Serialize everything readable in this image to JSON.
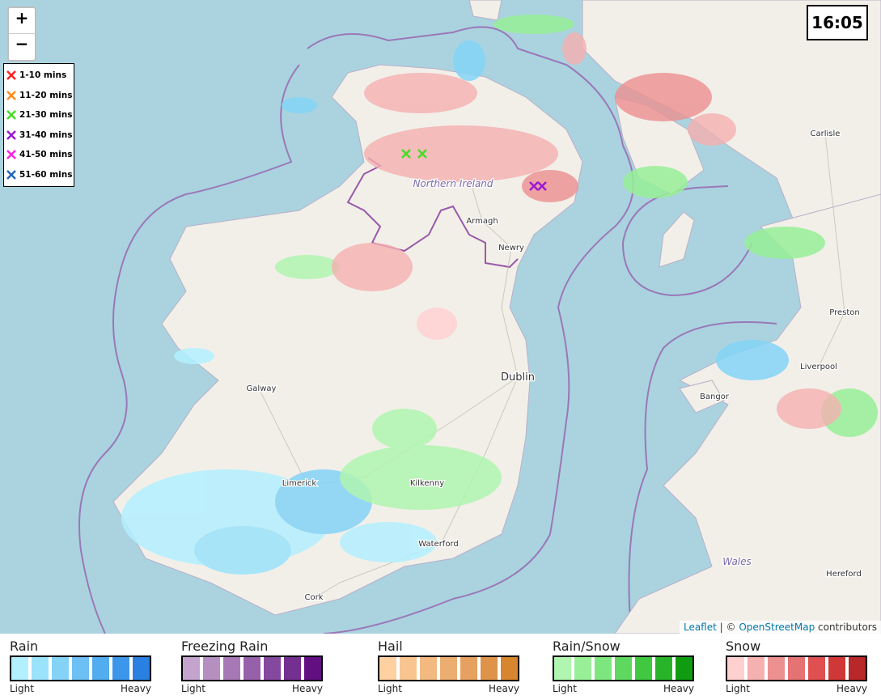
{
  "zoom": {
    "in": "+",
    "out": "−"
  },
  "time": "16:05",
  "lightning_legend": [
    {
      "label": "1-10 mins",
      "color": "#ff2020"
    },
    {
      "label": "11-20 mins",
      "color": "#ff8c1a"
    },
    {
      "label": "21-30 mins",
      "color": "#44dd22"
    },
    {
      "label": "31-40 mins",
      "color": "#9a18d8"
    },
    {
      "label": "41-50 mins",
      "color": "#ff22e0"
    },
    {
      "label": "51-60 mins",
      "color": "#2266bb"
    }
  ],
  "places": [
    "Northern Ireland",
    "Armagh",
    "Newry",
    "Dublin",
    "Galway",
    "Limerick",
    "Kilkenny",
    "Waterford",
    "Cork",
    "Bangor",
    "Liverpool",
    "Preston",
    "Carlisle",
    "Hereford",
    "Wales"
  ],
  "attribution": {
    "leaflet": "Leaflet",
    "separator": "| ©",
    "osm": "OpenStreetMap",
    "suffix": "contributors"
  },
  "legend": [
    {
      "title": "Rain",
      "colors": [
        "#b3f0ff",
        "#9be3fb",
        "#84d3f7",
        "#6cc0f3",
        "#52adef",
        "#3c97ea",
        "#2a80e0"
      ],
      "low": "Light",
      "high": "Heavy"
    },
    {
      "title": "Freezing Rain",
      "colors": [
        "#c4a4cc",
        "#b68fc1",
        "#a878b6",
        "#9660aa",
        "#84489e",
        "#733090",
        "#620f82"
      ],
      "low": "Light",
      "high": "Heavy"
    },
    {
      "title": "Hail",
      "colors": [
        "#ffd0a0",
        "#f8c590",
        "#f2b980",
        "#ecad70",
        "#e6a060",
        "#df9348",
        "#d88530"
      ],
      "low": "Light",
      "high": "Heavy"
    },
    {
      "title": "Rain/Snow",
      "colors": [
        "#b0f5b0",
        "#98ef98",
        "#7ee67e",
        "#5ed85e",
        "#40c840",
        "#28b428",
        "#109c10"
      ],
      "low": "Light",
      "high": "Heavy"
    },
    {
      "title": "Snow",
      "colors": [
        "#ffd0d0",
        "#f5b0b0",
        "#ec9090",
        "#e67373",
        "#e05050",
        "#d03838",
        "#b82828"
      ],
      "low": "Light",
      "high": "Heavy"
    }
  ]
}
